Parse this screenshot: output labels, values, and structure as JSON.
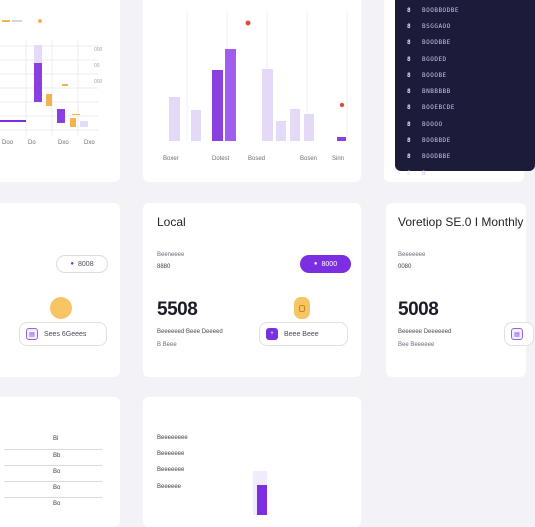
{
  "colors": {
    "accent": "#7b2fe0",
    "accent_light": "#e4d9f7",
    "orange": "#f2b24e",
    "red": "#e24b3b",
    "terminal_bg": "#1d1b3a",
    "background": "#f2f2f7"
  },
  "card2": {
    "axis_labels": [
      "Boxer",
      "Dotest",
      "Bosed",
      "Bosen",
      "Sinn"
    ]
  },
  "card1": {
    "axis_labels": [
      "Doo",
      "Do",
      "Dxo",
      "Dxo"
    ]
  },
  "terminal": {
    "rows": [
      {
        "num": "8",
        "text": "BOOBBODBE"
      },
      {
        "num": "8",
        "text": "BSGGAOO"
      },
      {
        "num": "8",
        "text": "BOODBBE"
      },
      {
        "num": "8",
        "text": "BGODED"
      },
      {
        "num": "8",
        "text": "BOOOBE"
      },
      {
        "num": "8",
        "text": "BNBBBBB"
      },
      {
        "num": "8",
        "text": "BOOEBCDE"
      },
      {
        "num": "8",
        "text": "BOOOO"
      },
      {
        "num": "8",
        "text": "BOOBBDE"
      },
      {
        "num": "8",
        "text": "BOODBBE"
      },
      {
        "num": "8",
        "text": "B"
      }
    ]
  },
  "card4": {
    "pill_label": "8008",
    "button_label": "Sees 6Geees"
  },
  "card5": {
    "title": "Local",
    "sub_label": "Beeneeee",
    "sub_value": "8880",
    "pill_label": "8000",
    "big_number": "5508",
    "caption": "Beeeeeed Beee Deeeed",
    "caption_sub": "B Beee",
    "button_label": "Beee Beee"
  },
  "card6": {
    "title": "Voretiop SE.0 I Monthly",
    "sub_label": "Beeeeeee",
    "sub_value": "0080",
    "big_number": "5008",
    "caption": "Beeeeee Deeeeeed",
    "caption_sub": "Bee Beeeeee"
  },
  "card7": {
    "rows": [
      "Bl",
      "Bb",
      "Bo",
      "Bo",
      "Bo"
    ]
  },
  "card8": {
    "rows": [
      "Beeeeeeee",
      "Beeeeeee",
      "Beeeeeee",
      "Beeeeee"
    ]
  }
}
